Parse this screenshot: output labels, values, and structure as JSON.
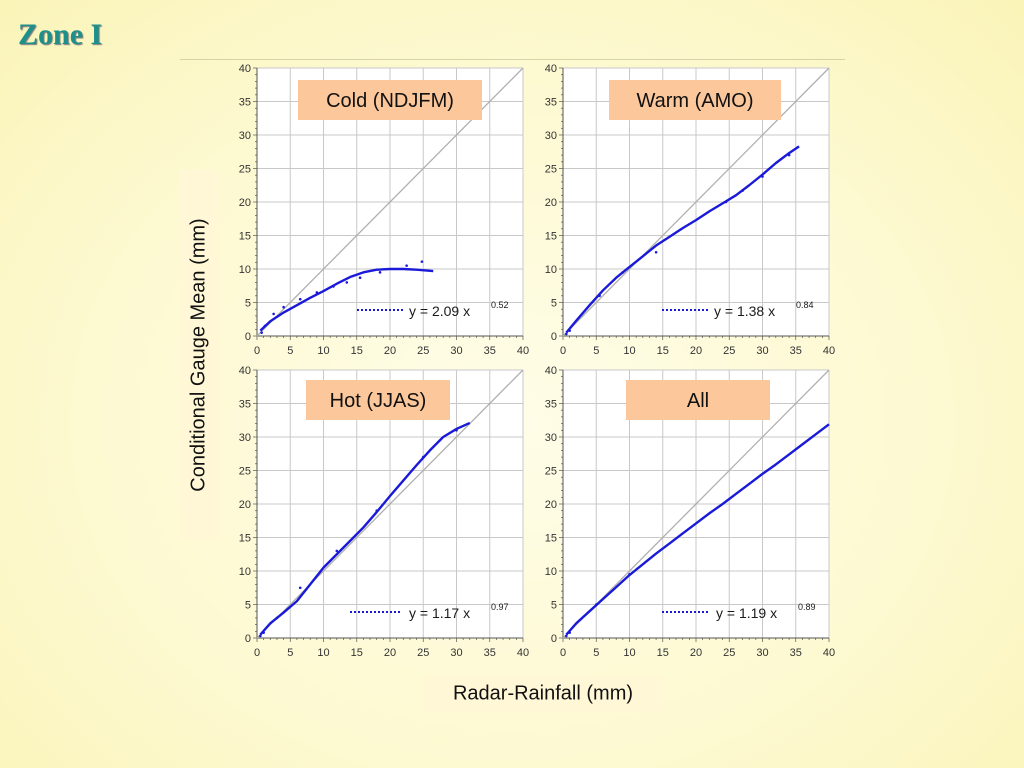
{
  "slide": {
    "title": "Zone I",
    "ylabel": "Conditional Gauge Mean (mm)",
    "xlabel": "Radar-Rainfall (mm)"
  },
  "colors": {
    "title": "#1f8f8a",
    "curve": "#1a1ad8",
    "one_to_one": "#b0b0b0",
    "panel_label_bg": "#fcc79a",
    "grid": "#c8c8c8"
  },
  "chart_data": [
    {
      "type": "line",
      "label": "Cold (NDJFM)",
      "xlim": [
        0,
        40
      ],
      "ylim": [
        0,
        40
      ],
      "xticks": [
        0,
        5,
        10,
        15,
        20,
        25,
        30,
        35,
        40
      ],
      "yticks": [
        0,
        5,
        10,
        15,
        20,
        25,
        30,
        35,
        40
      ],
      "one_to_one_line": true,
      "fit": {
        "coef": "2.09",
        "exp": "0.52",
        "text": "y = 2.09 x"
      },
      "curve": {
        "x": [
          0.5,
          2,
          4,
          6,
          8,
          10,
          12,
          14,
          16,
          18,
          20,
          22,
          24,
          26.5
        ],
        "y": [
          0.8,
          2.2,
          3.5,
          4.6,
          5.7,
          6.7,
          7.8,
          8.8,
          9.5,
          9.9,
          10.0,
          10.0,
          9.9,
          9.7
        ]
      },
      "points": {
        "x": [
          0.7,
          1.2,
          2.5,
          4.0,
          6.5,
          9.0,
          11.5,
          13.5,
          15.5,
          18.5,
          22.5,
          24.8
        ],
        "y": [
          0.5,
          1.5,
          3.3,
          4.3,
          5.5,
          6.5,
          7.4,
          8.0,
          8.7,
          9.5,
          10.5,
          11.1
        ]
      }
    },
    {
      "type": "line",
      "label": "Warm (AMO)",
      "xlim": [
        0,
        40
      ],
      "ylim": [
        0,
        40
      ],
      "xticks": [
        0,
        5,
        10,
        15,
        20,
        25,
        30,
        35,
        40
      ],
      "yticks": [
        0,
        5,
        10,
        15,
        20,
        25,
        30,
        35,
        40
      ],
      "one_to_one_line": true,
      "fit": {
        "coef": "1.38",
        "exp": "0.84",
        "text": "y = 1.38 x"
      },
      "curve": {
        "x": [
          0.5,
          2,
          4,
          6,
          8,
          10,
          12,
          14,
          16,
          18,
          20,
          22,
          24,
          26,
          28,
          30,
          32,
          34,
          35.5
        ],
        "y": [
          0.5,
          2.3,
          4.6,
          6.8,
          8.7,
          10.3,
          11.9,
          13.5,
          14.8,
          16.1,
          17.3,
          18.6,
          19.8,
          21.0,
          22.5,
          24.1,
          25.8,
          27.3,
          28.3
        ]
      },
      "points": {
        "x": [
          0.5,
          1.0,
          5.5,
          9.0,
          14.0,
          24.5,
          27.0,
          30.0,
          34.0
        ],
        "y": [
          0.3,
          0.8,
          6.0,
          9.5,
          12.5,
          20.0,
          21.7,
          23.8,
          27.0
        ]
      }
    },
    {
      "type": "line",
      "label": "Hot (JJAS)",
      "xlim": [
        0,
        40
      ],
      "ylim": [
        0,
        40
      ],
      "xticks": [
        0,
        5,
        10,
        15,
        20,
        25,
        30,
        35,
        40
      ],
      "yticks": [
        0,
        5,
        10,
        15,
        20,
        25,
        30,
        35,
        40
      ],
      "one_to_one_line": true,
      "fit": {
        "coef": "1.17",
        "exp": "0.97",
        "text": "y = 1.17 x"
      },
      "curve": {
        "x": [
          0.5,
          2,
          4,
          6,
          8,
          10,
          12,
          14,
          16,
          18,
          20,
          22,
          24,
          26,
          28,
          30,
          32
        ],
        "y": [
          0.5,
          2.2,
          3.8,
          5.5,
          8.0,
          10.5,
          12.5,
          14.5,
          16.5,
          18.8,
          21.2,
          23.5,
          25.8,
          28.0,
          30.0,
          31.2,
          32.1
        ]
      },
      "points": {
        "x": [
          0.5,
          1.0,
          3.0,
          6.5,
          12.0,
          18.0,
          25.0,
          30.0
        ],
        "y": [
          0.3,
          0.8,
          3.0,
          7.5,
          13.0,
          19.0,
          27.0,
          31.0
        ]
      }
    },
    {
      "type": "line",
      "label": "All",
      "xlim": [
        0,
        40
      ],
      "ylim": [
        0,
        40
      ],
      "xticks": [
        0,
        5,
        10,
        15,
        20,
        25,
        30,
        35,
        40
      ],
      "yticks": [
        0,
        5,
        10,
        15,
        20,
        25,
        30,
        35,
        40
      ],
      "one_to_one_line": true,
      "fit": {
        "coef": "1.19",
        "exp": "0.89",
        "text": "y = 1.19 x"
      },
      "curve": {
        "x": [
          0.5,
          2,
          4,
          6,
          8,
          10,
          12,
          14,
          16,
          18,
          20,
          22,
          24,
          26,
          28,
          30,
          32,
          34,
          36,
          38,
          40
        ],
        "y": [
          0.5,
          2.2,
          4.0,
          5.8,
          7.6,
          9.4,
          11.0,
          12.6,
          14.1,
          15.6,
          17.1,
          18.6,
          20.0,
          21.5,
          23.0,
          24.5,
          25.9,
          27.4,
          28.9,
          30.4,
          31.9
        ]
      },
      "points": {
        "x": [
          0.5,
          1.0,
          5.0,
          10.0
        ],
        "y": [
          0.3,
          0.8,
          5.0,
          9.5
        ]
      }
    }
  ]
}
